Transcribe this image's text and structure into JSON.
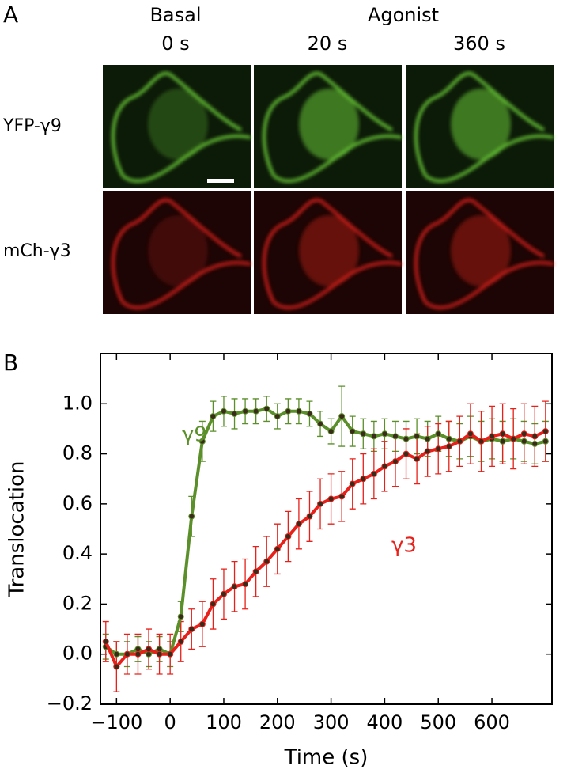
{
  "panel_a": {
    "label": "A",
    "headers": [
      "Basal",
      "Agonist"
    ],
    "times": [
      "0 s",
      "20 s",
      "360 s"
    ],
    "rows": [
      "YFP-γ9",
      "mCh-γ3"
    ]
  },
  "panel_b_label": "B",
  "chart_data": {
    "type": "line",
    "xlabel": "Time (s)",
    "ylabel": "Translocation",
    "x": [
      -120,
      -100,
      -80,
      -60,
      -40,
      -20,
      0,
      20,
      40,
      60,
      80,
      100,
      120,
      140,
      160,
      180,
      200,
      220,
      240,
      260,
      280,
      300,
      320,
      340,
      360,
      380,
      400,
      420,
      440,
      460,
      480,
      500,
      520,
      540,
      560,
      580,
      600,
      620,
      640,
      660,
      680,
      700
    ],
    "series": [
      {
        "name": "γ9",
        "color": "#5a8f29",
        "values": [
          0.03,
          0.0,
          0.0,
          0.02,
          0.0,
          0.02,
          0.0,
          0.15,
          0.55,
          0.85,
          0.95,
          0.97,
          0.96,
          0.97,
          0.97,
          0.98,
          0.95,
          0.97,
          0.97,
          0.96,
          0.92,
          0.89,
          0.95,
          0.89,
          0.88,
          0.87,
          0.88,
          0.87,
          0.86,
          0.87,
          0.86,
          0.88,
          0.86,
          0.85,
          0.87,
          0.85,
          0.86,
          0.85,
          0.86,
          0.85,
          0.84,
          0.85
        ],
        "errors": [
          0.05,
          0.05,
          0.05,
          0.05,
          0.05,
          0.05,
          0.05,
          0.06,
          0.08,
          0.08,
          0.06,
          0.06,
          0.06,
          0.05,
          0.05,
          0.05,
          0.05,
          0.05,
          0.05,
          0.05,
          0.05,
          0.05,
          0.12,
          0.06,
          0.06,
          0.06,
          0.06,
          0.06,
          0.07,
          0.07,
          0.07,
          0.07,
          0.07,
          0.07,
          0.08,
          0.08,
          0.08,
          0.08,
          0.08,
          0.08,
          0.08,
          0.08
        ]
      },
      {
        "name": "γ3",
        "color": "#e8201a",
        "values": [
          0.05,
          -0.05,
          0.0,
          0.0,
          0.02,
          0.0,
          0.0,
          0.05,
          0.1,
          0.12,
          0.2,
          0.24,
          0.27,
          0.28,
          0.33,
          0.37,
          0.42,
          0.47,
          0.52,
          0.55,
          0.6,
          0.62,
          0.63,
          0.68,
          0.7,
          0.72,
          0.75,
          0.77,
          0.8,
          0.78,
          0.81,
          0.82,
          0.83,
          0.85,
          0.88,
          0.85,
          0.87,
          0.88,
          0.86,
          0.88,
          0.87,
          0.89
        ],
        "errors": [
          0.08,
          0.1,
          0.08,
          0.08,
          0.08,
          0.08,
          0.08,
          0.08,
          0.08,
          0.09,
          0.1,
          0.1,
          0.1,
          0.1,
          0.1,
          0.1,
          0.1,
          0.1,
          0.1,
          0.1,
          0.1,
          0.1,
          0.1,
          0.1,
          0.1,
          0.1,
          0.1,
          0.1,
          0.1,
          0.1,
          0.1,
          0.1,
          0.1,
          0.1,
          0.12,
          0.12,
          0.12,
          0.12,
          0.12,
          0.12,
          0.12,
          0.12
        ]
      }
    ],
    "xlim": [
      -130,
      712
    ],
    "ylim": [
      -0.2,
      1.2
    ],
    "xticks": [
      {
        "value": -100,
        "label": "−100"
      },
      0,
      100,
      200,
      300,
      400,
      500,
      600
    ],
    "yticks": [
      {
        "value": -0.2,
        "label": "−0.2"
      },
      {
        "value": 0,
        "label": "0.0"
      },
      0.2,
      0.4,
      0.6,
      0.8,
      {
        "value": 1,
        "label": "1.0"
      }
    ]
  }
}
